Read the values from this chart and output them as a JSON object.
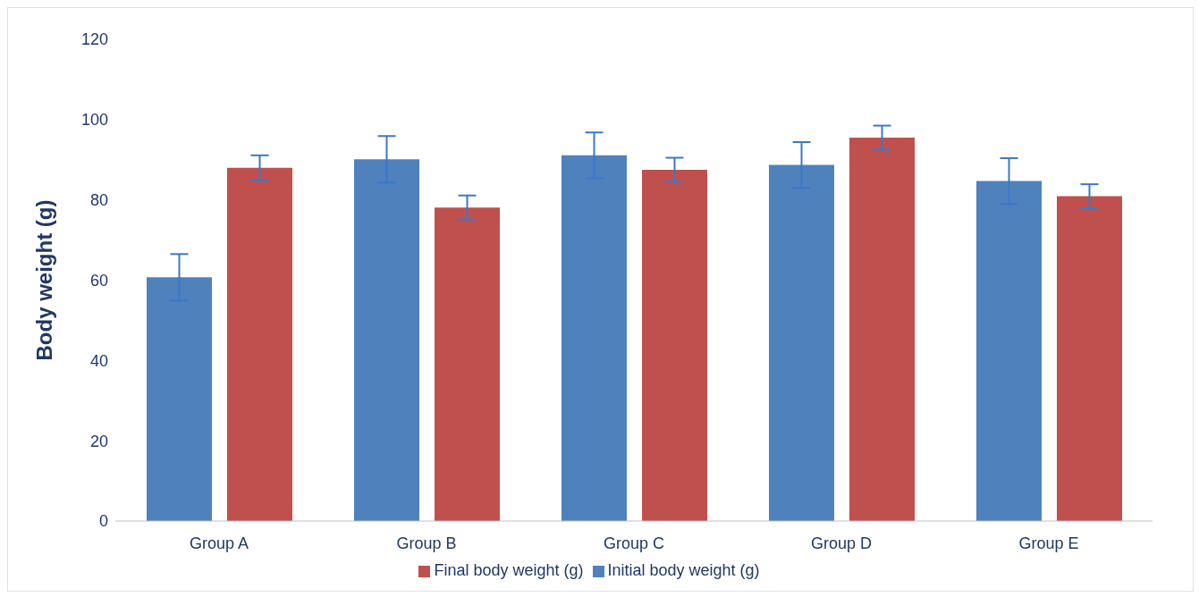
{
  "chart_data": {
    "type": "bar",
    "ylabel": "Body weight (g)",
    "categories": [
      "Group A",
      "Group B",
      "Group C",
      "Group D",
      "Group E"
    ],
    "series": [
      {
        "name": "Initial body weight (g)",
        "color": "#4f81bd",
        "values": [
          60.7,
          90.1,
          91.1,
          88.7,
          84.7
        ],
        "errors": [
          5.8,
          5.8,
          5.7,
          5.7,
          5.7
        ]
      },
      {
        "name": "Final body weight (g)",
        "color": "#c0504d",
        "values": [
          88.0,
          78.1,
          87.5,
          95.5,
          80.9
        ],
        "errors": [
          3.1,
          3.0,
          3.0,
          3.0,
          3.0
        ]
      }
    ],
    "ylim": [
      0,
      120
    ],
    "yticks": [
      0,
      20,
      40,
      60,
      80,
      100,
      120
    ],
    "grid": false,
    "legend": "bottom"
  }
}
